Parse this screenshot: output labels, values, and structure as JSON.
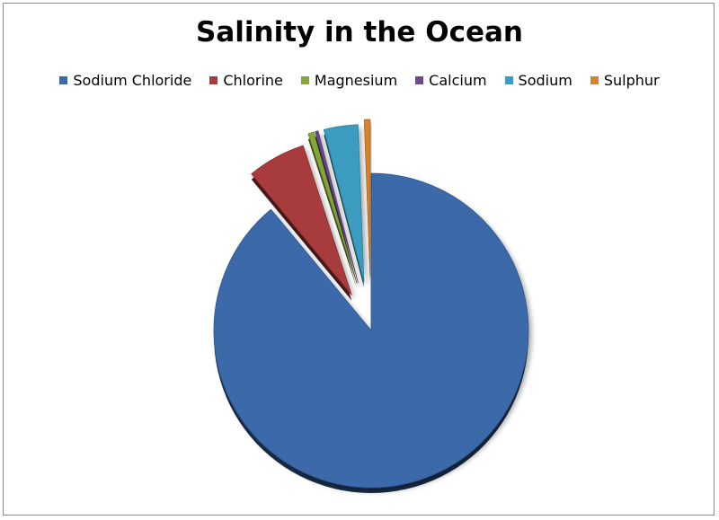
{
  "chart_data": {
    "type": "pie",
    "title": "Salinity in the Ocean",
    "legend_position": "top",
    "exploded": true,
    "categories": [
      "Sodium Chloride",
      "Chlorine",
      "Magnesium",
      "Calcium",
      "Sodium",
      "Sulphur"
    ],
    "values": [
      89.0,
      6.0,
      0.6,
      0.3,
      3.5,
      0.6
    ],
    "colors": [
      "#3b69aa",
      "#a83b3b",
      "#86a838",
      "#6b4b8c",
      "#3a9cbf",
      "#d9822b"
    ]
  }
}
